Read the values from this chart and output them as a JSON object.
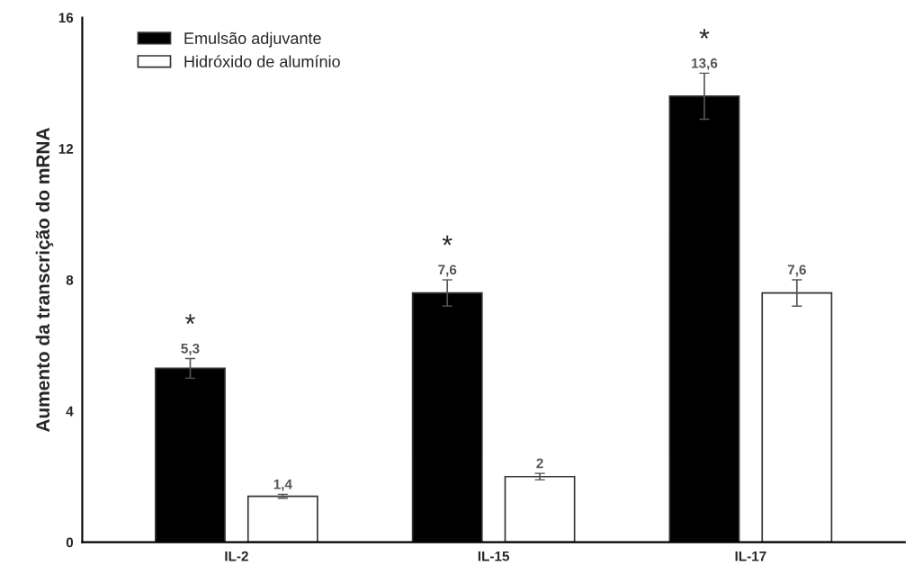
{
  "chart_data": {
    "type": "bar",
    "ylabel": "Aumento da transcrição do mRNA",
    "categories": [
      "IL-2",
      "IL-15",
      "IL-17"
    ],
    "series": [
      {
        "name": "Emulsão adjuvante",
        "color": "#000000",
        "values": [
          5.3,
          7.6,
          13.6
        ],
        "errors": [
          0.3,
          0.4,
          0.7
        ],
        "value_labels": [
          "5,3",
          "7,6",
          "13,6"
        ]
      },
      {
        "name": "Hidróxido de alumínio",
        "color": "#ffffff",
        "values": [
          1.4,
          2,
          7.6
        ],
        "errors": [
          0.06,
          0.1,
          0.4
        ],
        "value_labels": [
          "1,4",
          "2",
          "7,6"
        ]
      }
    ],
    "ylim": [
      0,
      16
    ],
    "yticks": [
      0,
      4,
      8,
      12,
      16
    ],
    "grid": false,
    "legend": "top left",
    "annotations": [
      "*",
      "*",
      "*"
    ]
  }
}
